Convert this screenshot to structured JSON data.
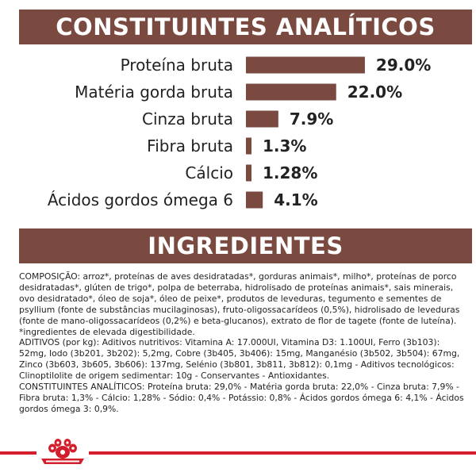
{
  "header": {
    "title": "CONSTITUINTES ANALÍTICOS"
  },
  "chart_data": {
    "type": "bar",
    "orientation": "horizontal",
    "categories": [
      "Proteína bruta",
      "Matéria gorda bruta",
      "Cinza bruta",
      "Fibra bruta",
      "Cálcio",
      "Ácidos gordos ómega 6"
    ],
    "values": [
      29.0,
      22.0,
      7.9,
      1.3,
      1.28,
      4.1
    ],
    "value_labels": [
      "29.0%",
      "22.0%",
      "7.9%",
      "1.3%",
      "1.28%",
      "4.1%"
    ],
    "xlabel": "",
    "ylabel": "",
    "grid": false,
    "bar_color": "#7a4a40"
  },
  "section": {
    "title": "INGREDIENTES"
  },
  "ingredients": {
    "paragraphs": [
      "COMPOSIÇÃO: arroz*, proteínas de aves desidratadas*, gorduras animais*, milho*, proteínas de porco desidratadas*, glúten de trigo*, polpa de beterraba, hidrolisado de proteínas animais*, sais minerais, ovo desidratado*, óleo de soja*, óleo de peixe*, produtos de leveduras, tegumento e sementes de psyllium (fonte de substâncias mucilaginosas), fruto-oligossacarídeos (0,5%), hidrolisado de leveduras (fonte de mano-oligossacarídeos (0,2%) e beta-glucanos), extrato de flor de tagete (fonte de luteína). *ingredientes de elevada digestibilidade.",
      "ADITIVOS (por kg): Aditivos nutritivos: Vitamina A: 17.000UI, Vitamina D3: 1.100UI, Ferro (3b103): 52mg, Iodo (3b201, 3b202): 5,2mg, Cobre (3b405, 3b406): 15mg, Manganésio (3b502, 3b504): 67mg, Zinco (3b603, 3b605, 3b606): 137mg, Selénio (3b801, 3b811, 3b812): 0,1mg - Aditivos tecnológicos: Clinoptilolite de origem sedimentar: 10g - Conservantes - Antioxidantes.",
      "CONSTITUINTES ANALÍTICOS: Proteína bruta: 29,0% - Matéria gorda bruta: 22,0% - Cinza bruta: 7,9% - Fibra bruta: 1,3% - Cálcio: 1,28% - Sódio: 0,4% - Potássio: 0,8% - Ácidos gordos ómega 6: 4,1% - Ácidos gordos ómega 3: 0,9%."
    ]
  },
  "footer": {
    "logo_icon": "royal-canin-crown-icon",
    "accent_color": "#d21f2b"
  }
}
